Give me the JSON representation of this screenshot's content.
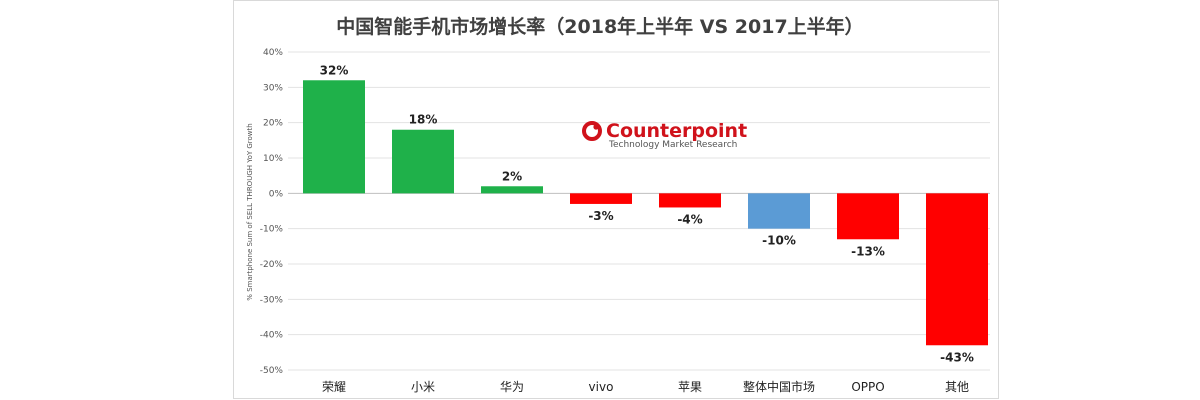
{
  "chart_data": {
    "type": "bar",
    "title": "中国智能手机市场增长率（2018年上半年 VS 2017上半年）",
    "ylabel": "% Smartphone Sum of SELL THROUGH YoY Growth",
    "ylim": [
      -50,
      40
    ],
    "yticks": [
      "40%",
      "30%",
      "20%",
      "10%",
      "0%",
      "-10%",
      "-20%",
      "-30%",
      "-40%",
      "-50%"
    ],
    "ytick_values": [
      40,
      30,
      20,
      10,
      0,
      -10,
      -20,
      -30,
      -40,
      -50
    ],
    "grid": true,
    "categories": [
      "荣耀",
      "小米",
      "华为",
      "vivo",
      "苹果",
      "整体中国市场",
      "OPPO",
      "其他"
    ],
    "values": [
      32,
      18,
      2,
      -3,
      -4,
      -10,
      -13,
      -43
    ],
    "labels": [
      "32%",
      "18%",
      "2%",
      "-3%",
      "-4%",
      "-10%",
      "-13%",
      "-43%"
    ],
    "colors": [
      "#1fb14a",
      "#1fb14a",
      "#1fb14a",
      "#ff0000",
      "#ff0000",
      "#5b9bd5",
      "#ff0000",
      "#ff0000"
    ]
  },
  "logo": {
    "brand": "Counterpoint",
    "tagline": "Technology Market Research",
    "color": "#d0121b"
  }
}
